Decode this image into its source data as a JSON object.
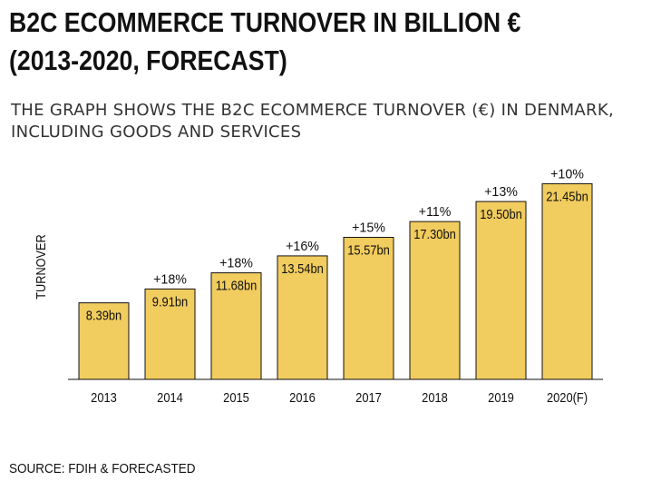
{
  "title_line1": "B2C ECOMMERCE TURNOVER IN BILLION €",
  "title_line2": "(2013-2020, FORECAST)",
  "subtitle_line1": "THE GRAPH SHOWS THE B2C ECOMMERCE TURNOVER (€) IN DENMARK,",
  "subtitle_line2": "INCLUDING GOODS AND SERVICES",
  "source": "SOURCE: FDIH & FORECASTED",
  "colors": {
    "bar": "#f1cc5e",
    "bar_border": "#111111",
    "axis": "#111111"
  },
  "chart_data": {
    "type": "bar",
    "categories": [
      "2013",
      "2014",
      "2015",
      "2016",
      "2017",
      "2018",
      "2019",
      "2020(F)"
    ],
    "values": [
      8.39,
      9.91,
      11.68,
      13.54,
      15.57,
      17.3,
      19.5,
      21.45
    ],
    "value_labels": [
      "8.39bn",
      "9.91bn",
      "11.68bn",
      "13.54bn",
      "15.57bn",
      "17.30bn",
      "19.50bn",
      "21.45bn"
    ],
    "growth_labels": [
      "",
      "+18%",
      "+18%",
      "+16%",
      "+15%",
      "+11%",
      "+13%",
      "+10%"
    ],
    "ylabel": "TURNOVER",
    "xlabel": "",
    "grid": false,
    "legend": false
  }
}
